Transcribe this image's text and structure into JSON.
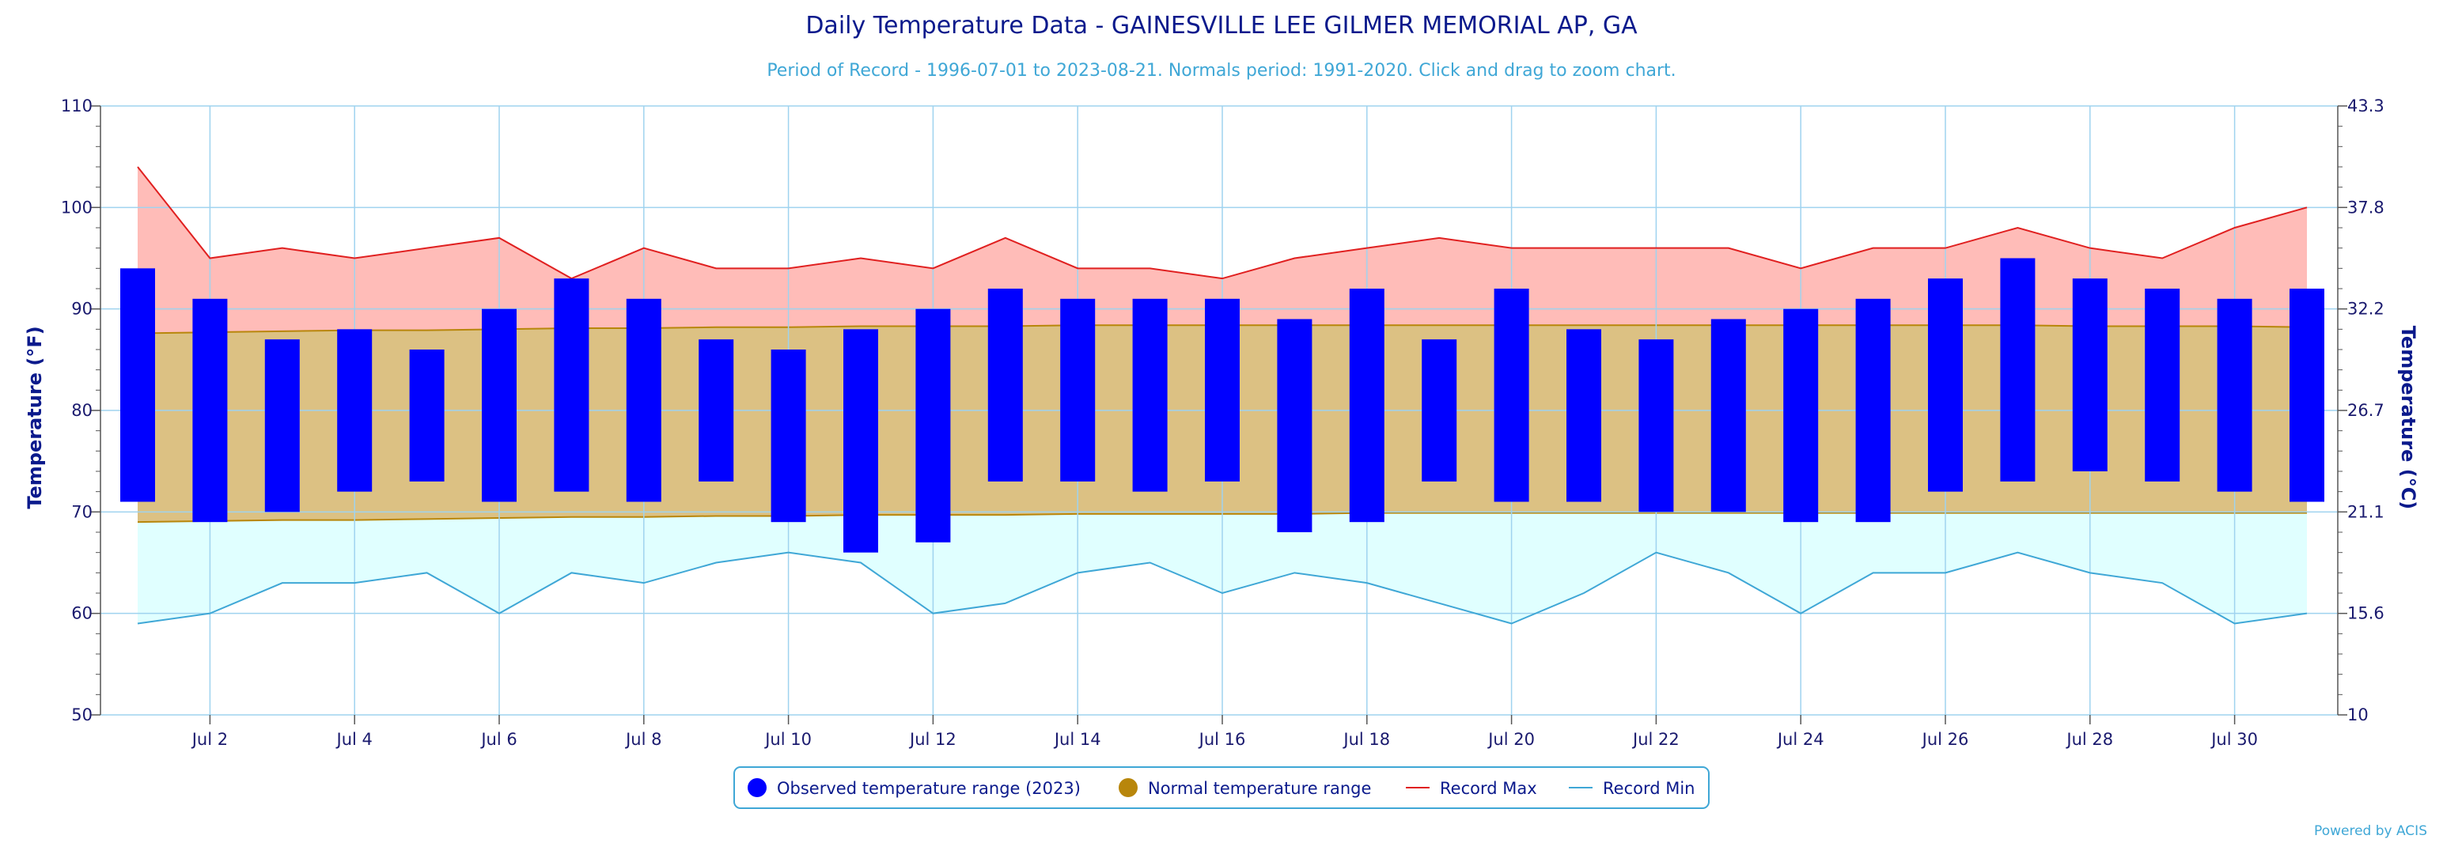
{
  "chart_data": {
    "type": "bar",
    "title": "Daily Temperature Data - GAINESVILLE LEE GILMER MEMORIAL AP, GA",
    "subtitle": "Period of Record - 1996-07-01 to 2023-08-21. Normals period: 1991-2020. Click and drag to zoom chart.",
    "ylabel": "Temperature (°F)",
    "ylabel_right": "Temperature (°C)",
    "ylim": [
      50,
      110
    ],
    "yticks": [
      50,
      60,
      70,
      80,
      90,
      100,
      110
    ],
    "yticks_right": [
      "10",
      "15.6",
      "21.1",
      "26.7",
      "32.2",
      "37.8",
      "43.3"
    ],
    "days": [
      1,
      2,
      3,
      4,
      5,
      6,
      7,
      8,
      9,
      10,
      11,
      12,
      13,
      14,
      15,
      16,
      17,
      18,
      19,
      20,
      21,
      22,
      23,
      24,
      25,
      26,
      27,
      28,
      29,
      30,
      31
    ],
    "x_tick_labels": [
      "Jul 2",
      "Jul 4",
      "Jul 6",
      "Jul 8",
      "Jul 10",
      "Jul 12",
      "Jul 14",
      "Jul 16",
      "Jul 18",
      "Jul 20",
      "Jul 22",
      "Jul 24",
      "Jul 26",
      "Jul 28",
      "Jul 30"
    ],
    "x_tick_days": [
      2,
      4,
      6,
      8,
      10,
      12,
      14,
      16,
      18,
      20,
      22,
      24,
      26,
      28,
      30
    ],
    "series": [
      {
        "name": "Observed temperature range (2023)",
        "color": "#0000ff",
        "high": [
          94,
          91,
          87,
          88,
          86,
          90,
          93,
          91,
          87,
          86,
          88,
          90,
          92,
          91,
          91,
          91,
          89,
          92,
          87,
          92,
          88,
          87,
          89,
          90,
          91,
          93,
          95,
          93,
          92,
          91,
          92
        ],
        "low": [
          71,
          69,
          70,
          72,
          73,
          71,
          72,
          71,
          73,
          69,
          66,
          67,
          73,
          73,
          72,
          73,
          68,
          69,
          73,
          71,
          71,
          70,
          70,
          69,
          69,
          72,
          73,
          74,
          73,
          72,
          71
        ]
      },
      {
        "name": "Normal temperature range",
        "color": "#b8860b",
        "high": [
          87.6,
          87.7,
          87.8,
          87.9,
          87.9,
          88.0,
          88.1,
          88.1,
          88.2,
          88.2,
          88.3,
          88.3,
          88.3,
          88.4,
          88.4,
          88.4,
          88.4,
          88.4,
          88.4,
          88.4,
          88.4,
          88.4,
          88.4,
          88.4,
          88.4,
          88.4,
          88.4,
          88.3,
          88.3,
          88.3,
          88.2
        ],
        "low": [
          69.0,
          69.1,
          69.2,
          69.2,
          69.3,
          69.4,
          69.5,
          69.5,
          69.6,
          69.6,
          69.7,
          69.7,
          69.7,
          69.8,
          69.8,
          69.8,
          69.8,
          69.9,
          69.9,
          69.9,
          69.9,
          69.9,
          69.9,
          69.9,
          69.9,
          69.9,
          69.9,
          69.9,
          69.9,
          69.9,
          69.9
        ]
      },
      {
        "name": "Record Max",
        "color": "#e02020",
        "values": [
          104,
          95,
          96,
          95,
          96,
          97,
          93,
          96,
          94,
          94,
          95,
          94,
          97,
          94,
          94,
          93,
          95,
          96,
          97,
          96,
          96,
          96,
          96,
          94,
          96,
          96,
          98,
          96,
          95,
          98,
          100
        ]
      },
      {
        "name": "Record Min",
        "color": "#3fa7d6",
        "values": [
          59,
          60,
          63,
          63,
          64,
          60,
          64,
          63,
          65,
          66,
          65,
          60,
          61,
          64,
          65,
          62,
          64,
          63,
          61,
          59,
          62,
          66,
          64,
          60,
          64,
          64,
          66,
          64,
          63,
          59,
          60
        ]
      }
    ],
    "legend": {
      "position": "bottom-center",
      "items": [
        {
          "label": "Observed temperature range (2023)",
          "color": "#0000ff",
          "shape": "circle"
        },
        {
          "label": "Normal temperature range",
          "color": "#b8860b",
          "shape": "circle"
        },
        {
          "label": "Record Max",
          "color": "#e02020",
          "shape": "line"
        },
        {
          "label": "Record Min",
          "color": "#3fa7d6",
          "shape": "line"
        }
      ]
    },
    "grid": true,
    "credit": "Powered by ACIS"
  }
}
